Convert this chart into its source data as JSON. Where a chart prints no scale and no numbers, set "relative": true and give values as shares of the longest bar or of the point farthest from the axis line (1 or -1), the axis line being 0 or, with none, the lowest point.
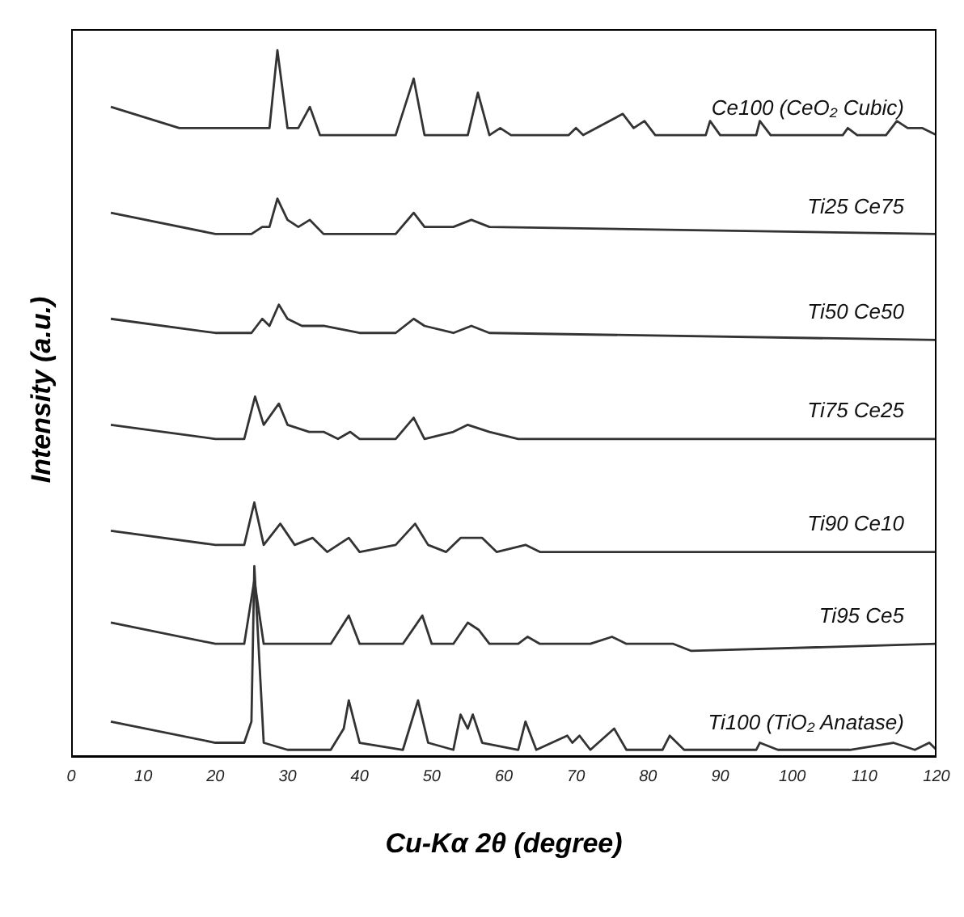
{
  "chart_data": {
    "type": "line",
    "relative": true,
    "xlabel": "Cu-Kα 2θ (degree)",
    "ylabel": "Intensity (a.u.)",
    "xlim": [
      0,
      120
    ],
    "xticks": [
      0,
      10,
      20,
      30,
      40,
      50,
      60,
      70,
      80,
      90,
      100,
      110,
      120
    ],
    "marker": "none",
    "line_style": "solid",
    "grid": false,
    "series": [
      {
        "name": "Ce100 (CeO₂ Cubic)",
        "color": "#333333",
        "x": [
          5.5,
          15,
          25,
          27.5,
          28.6,
          30,
          31.5,
          33.1,
          34.5,
          45,
          47.5,
          49,
          55,
          56.4,
          58,
          59.5,
          61,
          69,
          70,
          71,
          76.5,
          78,
          79.5,
          81,
          88,
          88.6,
          90,
          95,
          95.5,
          97,
          107,
          107.7,
          109,
          113,
          114.5,
          116,
          118,
          120
        ],
        "values": [
          0.92,
          0.89,
          0.89,
          0.89,
          1,
          0.89,
          0.89,
          0.92,
          0.88,
          0.88,
          0.96,
          0.88,
          0.88,
          0.94,
          0.88,
          0.89,
          0.88,
          0.88,
          0.89,
          0.88,
          0.91,
          0.89,
          0.9,
          0.88,
          0.88,
          0.9,
          0.88,
          0.88,
          0.9,
          0.88,
          0.88,
          0.89,
          0.88,
          0.88,
          0.9,
          0.89,
          0.89,
          0.88
        ]
      },
      {
        "name": "Ti25 Ce75",
        "color": "#333333",
        "x": [
          5.5,
          20,
          25,
          26.5,
          27.5,
          28.6,
          30,
          31.5,
          33.1,
          35,
          45,
          47.5,
          49,
          53,
          55.5,
          58,
          120
        ],
        "values": [
          0.77,
          0.74,
          0.74,
          0.75,
          0.75,
          0.79,
          0.76,
          0.75,
          0.76,
          0.74,
          0.74,
          0.77,
          0.75,
          0.75,
          0.76,
          0.75,
          0.74
        ]
      },
      {
        "name": "Ti50 Ce50",
        "color": "#333333",
        "x": [
          5.5,
          20,
          25,
          26.5,
          27.5,
          28.8,
          30,
          32,
          33.5,
          35,
          40,
          45,
          47.5,
          49,
          53,
          55.5,
          58,
          120
        ],
        "values": [
          0.62,
          0.6,
          0.6,
          0.62,
          0.61,
          0.64,
          0.62,
          0.61,
          0.61,
          0.61,
          0.6,
          0.6,
          0.62,
          0.61,
          0.6,
          0.61,
          0.6,
          0.59
        ]
      },
      {
        "name": "Ti75 Ce25",
        "color": "#333333",
        "x": [
          5.5,
          20,
          24,
          25.5,
          26.7,
          28.8,
          30,
          33,
          35,
          37,
          38.7,
          40,
          45,
          47.5,
          49,
          53,
          55,
          58,
          62,
          120
        ],
        "values": [
          0.47,
          0.45,
          0.45,
          0.51,
          0.47,
          0.5,
          0.47,
          0.46,
          0.46,
          0.45,
          0.46,
          0.45,
          0.45,
          0.48,
          0.45,
          0.46,
          0.47,
          0.46,
          0.45,
          0.45
        ]
      },
      {
        "name": "Ti90 Ce10",
        "color": "#333333",
        "x": [
          5.5,
          20,
          24,
          25.4,
          26.7,
          29,
          31,
          33.5,
          35.5,
          38.5,
          40,
          45,
          47.7,
          49.5,
          52,
          54,
          57,
          59,
          63,
          65,
          120
        ],
        "values": [
          0.32,
          0.3,
          0.3,
          0.36,
          0.3,
          0.33,
          0.3,
          0.31,
          0.29,
          0.31,
          0.29,
          0.3,
          0.33,
          0.3,
          0.29,
          0.31,
          0.31,
          0.29,
          0.3,
          0.29,
          0.29
        ]
      },
      {
        "name": "Ti95 Ce5",
        "color": "#333333",
        "x": [
          5.5,
          20,
          24,
          25.4,
          26.7,
          30,
          36,
          38.5,
          40,
          46,
          48.7,
          50,
          53,
          55,
          56.5,
          58,
          62,
          63.3,
          65,
          69,
          72,
          75,
          77,
          82,
          83.5,
          86,
          120
        ],
        "values": [
          0.19,
          0.16,
          0.16,
          0.25,
          0.16,
          0.16,
          0.16,
          0.2,
          0.16,
          0.16,
          0.2,
          0.16,
          0.16,
          0.19,
          0.18,
          0.16,
          0.16,
          0.17,
          0.16,
          0.16,
          0.16,
          0.17,
          0.16,
          0.16,
          0.16,
          0.15,
          0.16
        ]
      },
      {
        "name": "Ti100 (TiO₂ Anatase)",
        "color": "#333333",
        "x": [
          5.5,
          20,
          24,
          25,
          25.4,
          26.7,
          30,
          36,
          37.8,
          38.5,
          40,
          46,
          48.1,
          49.5,
          53,
          54,
          55,
          55.7,
          57,
          62,
          63,
          64.5,
          68.8,
          69.5,
          70.5,
          72,
          75.3,
          77,
          82,
          83,
          85,
          95,
          95.5,
          98,
          108,
          114,
          117,
          119,
          120
        ],
        "values": [
          0.05,
          0.02,
          0.02,
          0.05,
          0.27,
          0.02,
          0.01,
          0.01,
          0.04,
          0.08,
          0.02,
          0.01,
          0.08,
          0.02,
          0.01,
          0.06,
          0.04,
          0.06,
          0.02,
          0.01,
          0.05,
          0.01,
          0.03,
          0.02,
          0.03,
          0.01,
          0.04,
          0.01,
          0.01,
          0.03,
          0.01,
          0.01,
          0.02,
          0.01,
          0.01,
          0.02,
          0.01,
          0.02,
          0.01
        ]
      }
    ]
  }
}
